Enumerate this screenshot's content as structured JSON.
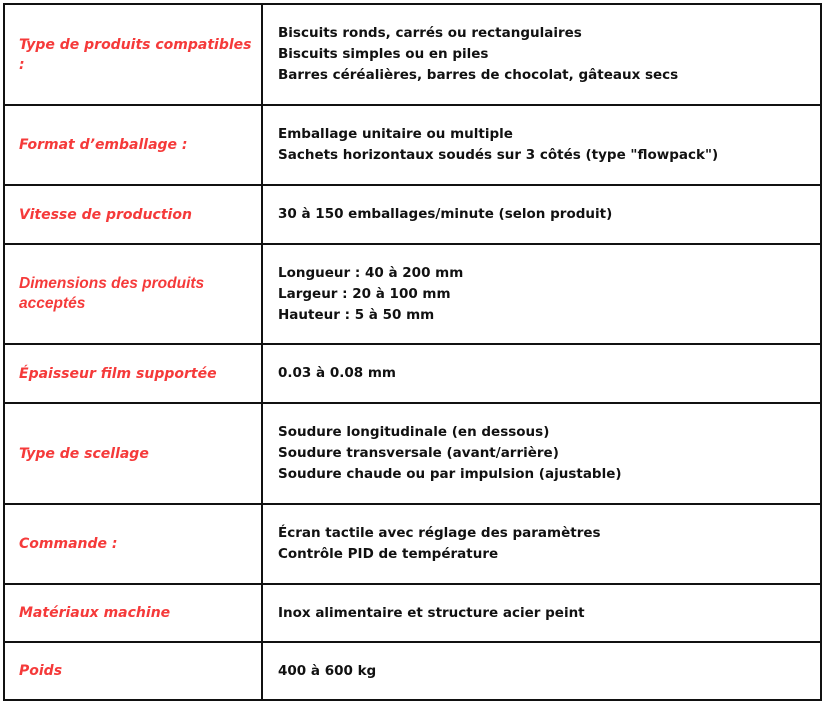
{
  "colors": {
    "label": "#f53a3a",
    "text": "#111111",
    "border": "#111111"
  },
  "rows": [
    {
      "label": "Type de produits compatibles :",
      "lines": [
        "Biscuits ronds, carrés ou rectangulaires",
        "Biscuits simples ou en piles",
        "Barres céréalières, barres de chocolat, gâteaux secs"
      ]
    },
    {
      "label": "Format d’emballage :",
      "lines": [
        "Emballage unitaire ou multiple",
        "Sachets horizontaux soudés sur 3 côtés (type \"flowpack\")"
      ]
    },
    {
      "label": "Vitesse de production",
      "lines": [
        "30 à 150 emballages/minute (selon produit)"
      ]
    },
    {
      "label": "Dimensions des produits acceptés",
      "lines": [
        "Longueur : 40 à 200 mm",
        "Largeur : 20 à 100 mm",
        "Hauteur : 5 à 50 mm"
      ]
    },
    {
      "label": "Épaisseur film supportée",
      "lines": [
        "0.03 à 0.08 mm"
      ]
    },
    {
      "label": "Type de scellage",
      "lines": [
        "Soudure longitudinale (en dessous)",
        "Soudure transversale (avant/arrière)",
        "Soudure chaude ou par impulsion (ajustable)"
      ]
    },
    {
      "label": "Commande :",
      "lines": [
        "Écran tactile avec réglage des paramètres",
        "Contrôle PID de température"
      ]
    },
    {
      "label": "Matériaux machine",
      "lines": [
        "Inox alimentaire et structure acier peint"
      ]
    },
    {
      "label": "Poids",
      "lines": [
        "400 à 600 kg"
      ]
    }
  ]
}
